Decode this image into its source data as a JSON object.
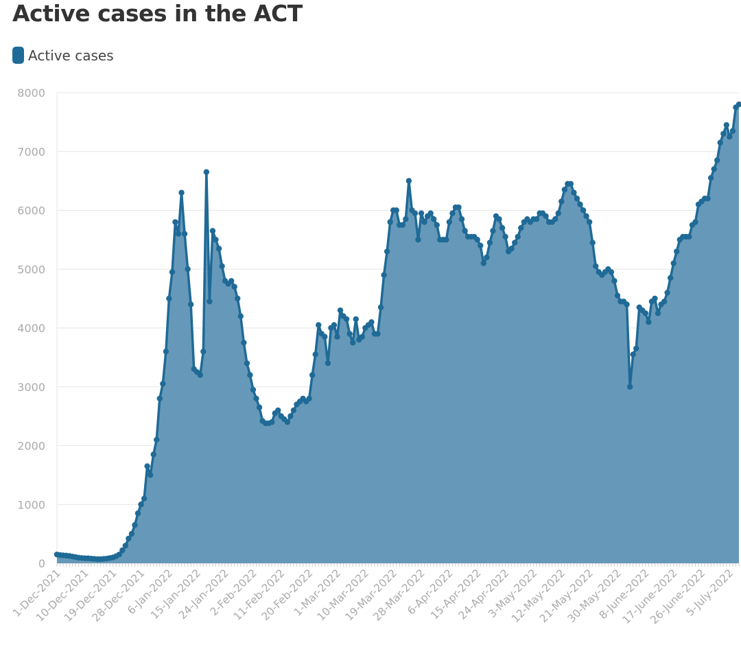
{
  "title": "Active cases in the ACT",
  "legend": {
    "label": "Active cases",
    "color": "#1f6a96"
  },
  "colors": {
    "line": "#1f6a96",
    "area": "#6699b9",
    "grid": "#e6e6e6",
    "tick_text": "#aaaaaa"
  },
  "chart_data": {
    "type": "area",
    "title": "Active cases in the ACT",
    "xlabel": "",
    "ylabel": "",
    "ylim": [
      0,
      8000
    ],
    "yticks": [
      0,
      1000,
      2000,
      3000,
      4000,
      5000,
      6000,
      7000,
      8000
    ],
    "grid": true,
    "legend_position": "top-left",
    "x_tick_labels": [
      "1-Dec-2021",
      "10-Dec-2021",
      "19-Dec-2021",
      "28-Dec-2021",
      "6-Jan-2022",
      "15-Jan-2022",
      "24-Jan-2022",
      "2-Feb-2022",
      "11-Feb-2022",
      "20-Feb-2022",
      "1-Mar-2022",
      "10-Mar-2022",
      "19-Mar-2022",
      "28-Mar-2022",
      "6-Apr-2022",
      "15-Apr-2022",
      "24-Apr-2022",
      "3-May-2022",
      "12-May-2022",
      "21-May-2022",
      "30-May-2022",
      "8-June-2022",
      "17-June-2022",
      "26-June-2022",
      "5-July-2022"
    ],
    "x_start": "1-Dec-2021",
    "x_end": "11-July-2022",
    "series": [
      {
        "name": "Active cases",
        "values": [
          150,
          140,
          135,
          130,
          125,
          115,
          105,
          95,
          90,
          85,
          85,
          80,
          75,
          70,
          70,
          75,
          80,
          90,
          100,
          120,
          150,
          220,
          300,
          420,
          500,
          650,
          850,
          1000,
          1100,
          1650,
          1500,
          1850,
          2100,
          2800,
          3050,
          3600,
          4500,
          4950,
          5800,
          5600,
          6300,
          5600,
          5000,
          4400,
          3300,
          3250,
          3200,
          3600,
          6650,
          4450,
          5650,
          5500,
          5350,
          5050,
          4800,
          4750,
          4800,
          4700,
          4500,
          4200,
          3750,
          3400,
          3200,
          2950,
          2800,
          2650,
          2420,
          2380,
          2380,
          2400,
          2550,
          2600,
          2500,
          2450,
          2400,
          2500,
          2600,
          2700,
          2750,
          2800,
          2750,
          2800,
          3200,
          3550,
          4050,
          3900,
          3850,
          3400,
          4000,
          4050,
          3850,
          4300,
          4200,
          4150,
          3900,
          3750,
          4150,
          3800,
          3850,
          4000,
          4050,
          4100,
          3900,
          3900,
          4350,
          4900,
          5300,
          5800,
          6000,
          6000,
          5750,
          5750,
          5850,
          6500,
          6000,
          5950,
          5500,
          5950,
          5800,
          5900,
          5950,
          5850,
          5750,
          5500,
          5500,
          5500,
          5800,
          5950,
          6050,
          6050,
          5850,
          5650,
          5550,
          5550,
          5550,
          5500,
          5400,
          5100,
          5200,
          5450,
          5650,
          5900,
          5850,
          5700,
          5550,
          5300,
          5350,
          5450,
          5550,
          5700,
          5800,
          5850,
          5800,
          5850,
          5850,
          5950,
          5950,
          5900,
          5800,
          5800,
          5850,
          5950,
          6150,
          6350,
          6450,
          6450,
          6300,
          6200,
          6100,
          6000,
          5900,
          5800,
          5450,
          5050,
          4950,
          4900,
          4950,
          5000,
          4950,
          4800,
          4550,
          4450,
          4450,
          4400,
          3000,
          3550,
          3650,
          4350,
          4300,
          4250,
          4100,
          4450,
          4500,
          4250,
          4400,
          4450,
          4600,
          4850,
          5100,
          5300,
          5500,
          5550,
          5550,
          5550,
          5750,
          5800,
          6100,
          6150,
          6200,
          6200,
          6550,
          6700,
          6850,
          7150,
          7300,
          7450,
          7250,
          7350,
          7750,
          7800
        ]
      }
    ]
  }
}
